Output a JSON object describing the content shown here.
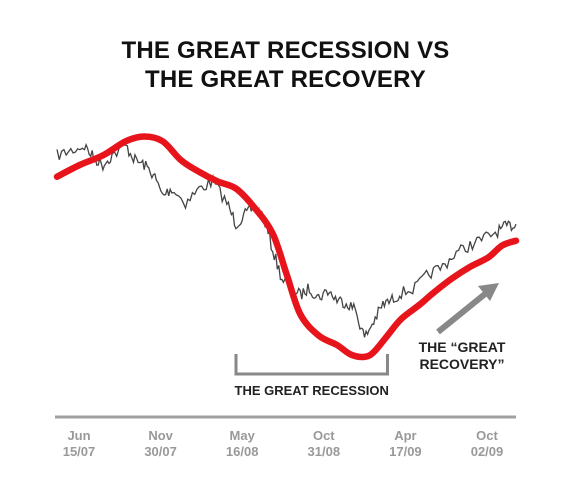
{
  "chart_data": {
    "type": "line",
    "title": [
      "THE GREAT RECESSION VS",
      "THE GREAT RECOVERY"
    ],
    "xlabel": "",
    "ylabel": "",
    "x_ticks": [
      {
        "month": "Jun",
        "date": "15/07"
      },
      {
        "month": "Nov",
        "date": "30/07"
      },
      {
        "month": "May",
        "date": "16/08"
      },
      {
        "month": "Oct",
        "date": "31/08"
      },
      {
        "month": "Apr",
        "date": "17/09"
      },
      {
        "month": "Oct",
        "date": "02/09"
      }
    ],
    "x_range": [
      0,
      1
    ],
    "y_range": [
      0,
      1
    ],
    "series": [
      {
        "style": "thin-price",
        "color": "#444444",
        "points": [
          [
            0.0,
            0.8
          ],
          [
            0.03,
            0.82
          ],
          [
            0.06,
            0.84
          ],
          [
            0.08,
            0.79
          ],
          [
            0.1,
            0.76
          ],
          [
            0.12,
            0.8
          ],
          [
            0.15,
            0.84
          ],
          [
            0.17,
            0.78
          ],
          [
            0.19,
            0.76
          ],
          [
            0.21,
            0.72
          ],
          [
            0.23,
            0.63
          ],
          [
            0.25,
            0.66
          ],
          [
            0.28,
            0.6
          ],
          [
            0.31,
            0.66
          ],
          [
            0.34,
            0.69
          ],
          [
            0.37,
            0.6
          ],
          [
            0.39,
            0.51
          ],
          [
            0.41,
            0.55
          ],
          [
            0.43,
            0.58
          ],
          [
            0.45,
            0.54
          ],
          [
            0.47,
            0.4
          ],
          [
            0.49,
            0.28
          ],
          [
            0.51,
            0.24
          ],
          [
            0.53,
            0.21
          ],
          [
            0.55,
            0.24
          ],
          [
            0.57,
            0.2
          ],
          [
            0.59,
            0.23
          ],
          [
            0.61,
            0.19
          ],
          [
            0.63,
            0.18
          ],
          [
            0.65,
            0.15
          ],
          [
            0.67,
            0.03
          ],
          [
            0.69,
            0.1
          ],
          [
            0.71,
            0.17
          ],
          [
            0.73,
            0.19
          ],
          [
            0.75,
            0.22
          ],
          [
            0.78,
            0.24
          ],
          [
            0.81,
            0.3
          ],
          [
            0.84,
            0.33
          ],
          [
            0.87,
            0.39
          ],
          [
            0.9,
            0.42
          ],
          [
            0.93,
            0.45
          ],
          [
            0.96,
            0.48
          ],
          [
            0.98,
            0.5
          ],
          [
            1.0,
            0.51
          ]
        ]
      },
      {
        "style": "thick-trend",
        "color": "#e8141b",
        "points": [
          [
            0.0,
            0.71
          ],
          [
            0.05,
            0.76
          ],
          [
            0.1,
            0.8
          ],
          [
            0.15,
            0.86
          ],
          [
            0.19,
            0.88
          ],
          [
            0.23,
            0.86
          ],
          [
            0.27,
            0.78
          ],
          [
            0.31,
            0.73
          ],
          [
            0.35,
            0.69
          ],
          [
            0.39,
            0.66
          ],
          [
            0.43,
            0.58
          ],
          [
            0.47,
            0.47
          ],
          [
            0.5,
            0.3
          ],
          [
            0.53,
            0.13
          ],
          [
            0.57,
            0.04
          ],
          [
            0.61,
            0.0
          ],
          [
            0.64,
            -0.04
          ],
          [
            0.67,
            -0.05
          ],
          [
            0.69,
            -0.03
          ],
          [
            0.72,
            0.04
          ],
          [
            0.75,
            0.11
          ],
          [
            0.79,
            0.17
          ],
          [
            0.82,
            0.22
          ],
          [
            0.86,
            0.28
          ],
          [
            0.9,
            0.33
          ],
          [
            0.94,
            0.37
          ],
          [
            0.97,
            0.42
          ],
          [
            1.0,
            0.44
          ]
        ]
      }
    ],
    "annotations": {
      "recession_label": "THE GREAT RECESSION",
      "recession_span": [
        0.39,
        0.72
      ],
      "recovery_label": [
        "THE “GREAT",
        "RECOVERY”"
      ],
      "arrow_color": "#888888"
    }
  }
}
